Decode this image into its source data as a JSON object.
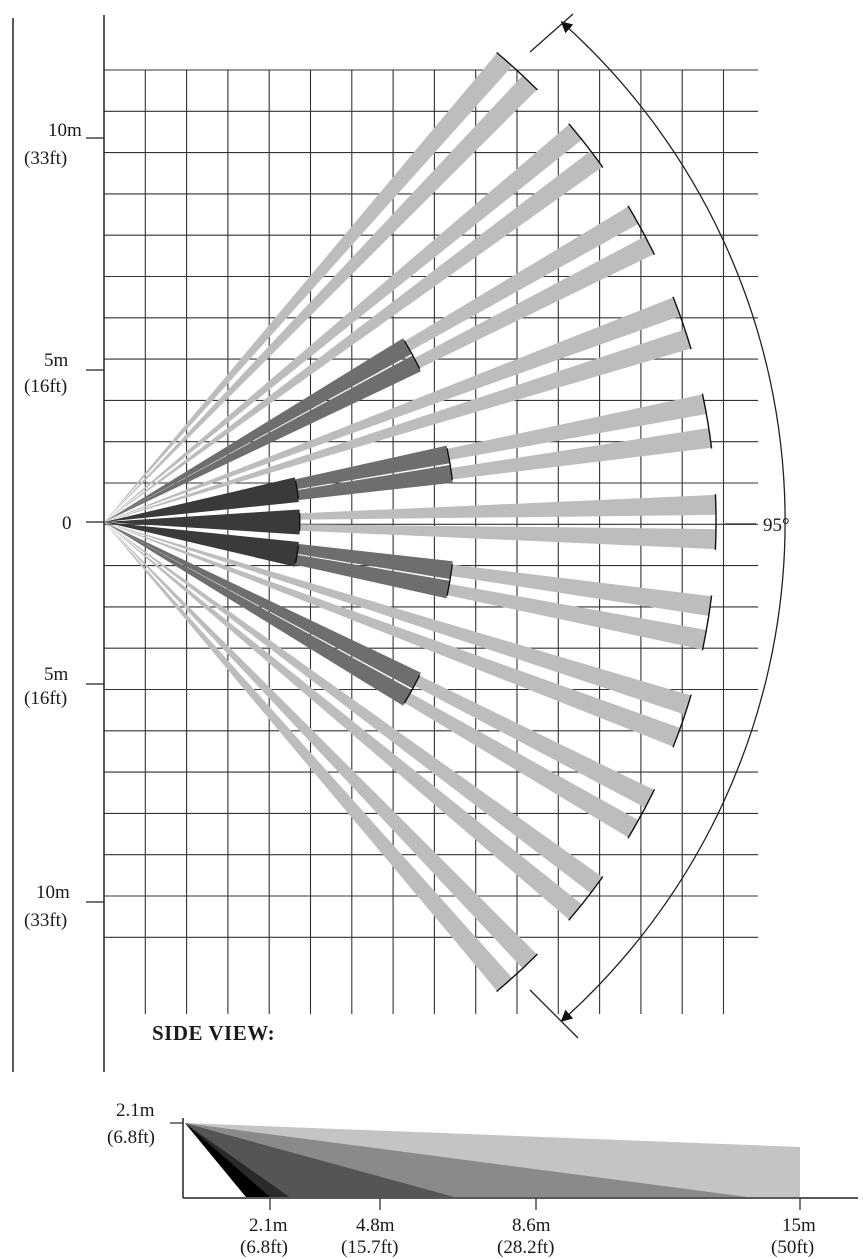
{
  "top_view": {
    "coverage_angle_label": "95°",
    "y_axis_labels": [
      {
        "meters": "10m",
        "feet": "(33ft)",
        "offset_m": 10
      },
      {
        "meters": "5m",
        "feet": "(16ft)",
        "offset_m": 5
      },
      {
        "meters": "0",
        "feet": "",
        "offset_m": 0
      },
      {
        "meters": "5m",
        "feet": "(16ft)",
        "offset_m": -5
      },
      {
        "meters": "10m",
        "feet": "(33ft)",
        "offset_m": -10
      }
    ],
    "zones": [
      {
        "tier": "long",
        "shade": "#bdbdbd",
        "range_m": 15,
        "angles_deg": [
          47.5,
          38,
          28.5,
          19,
          9.5,
          0,
          -9.5,
          -19,
          -28.5,
          -38,
          -47.5
        ]
      },
      {
        "tier": "mid",
        "shade": "#6e6e6e",
        "range_m": 8.6,
        "angles_deg": [
          28.5,
          9.5,
          -9.5,
          -28.5
        ]
      },
      {
        "tier": "short",
        "shade": "#3a3a3a",
        "range_m": 4.8,
        "angles_deg": [
          9.5,
          0,
          -9.5
        ]
      }
    ]
  },
  "side_view": {
    "title": "SIDE VIEW:",
    "height_label": {
      "meters": "2.1m",
      "feet": "(6.8ft)"
    },
    "distance_labels": [
      {
        "meters": "2.1m",
        "feet": "(6.8ft)",
        "distance_m": 2.1
      },
      {
        "meters": "4.8m",
        "feet": "(15.7ft)",
        "distance_m": 4.8
      },
      {
        "meters": "8.6m",
        "feet": "(28.2ft)",
        "distance_m": 8.6
      },
      {
        "meters": "15m",
        "feet": "(50ft)",
        "distance_m": 15
      }
    ]
  }
}
